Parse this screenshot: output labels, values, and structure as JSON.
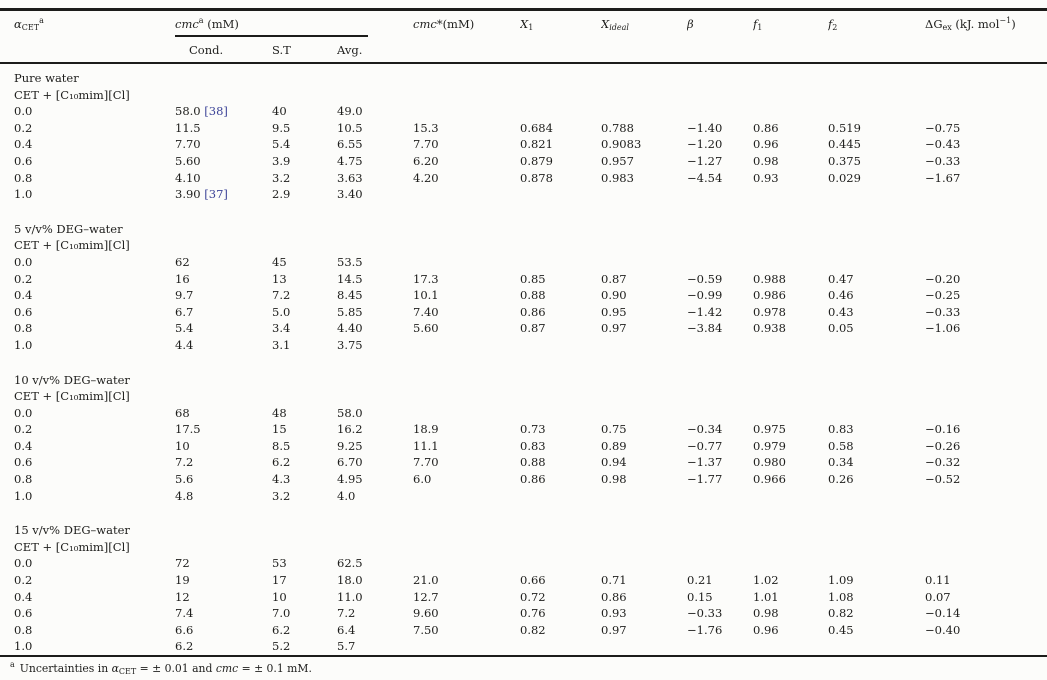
{
  "colors": {
    "citation_link": "#3d4498",
    "text": "#1e1e1c",
    "background": "#fcfcfa",
    "rule": "#1c1c1a"
  },
  "header": {
    "alpha": {
      "symbol": "α",
      "sub": "CET",
      "sup": "a"
    },
    "cmc_group": {
      "symbol": "cmc",
      "sup": "a",
      "unit": " (mM)"
    },
    "cmc_sub_columns": {
      "cond": "Cond.",
      "st": "S.T",
      "avg": "Avg."
    },
    "cmc_star": {
      "symbol": "cmc",
      "star": "*",
      "unit": "(mM)"
    },
    "x1": {
      "symbol": "X",
      "sub": "1"
    },
    "x_ideal": {
      "symbol": "X",
      "sub": "ideal"
    },
    "beta": {
      "symbol": "β"
    },
    "f1": {
      "symbol": "f",
      "sub": "1"
    },
    "f2": {
      "symbol": "f",
      "sub": "2"
    },
    "dg_ex": {
      "symbol": "ΔG",
      "sub": "ex",
      "unit_pre": " (kJ. mol",
      "sup": "−1",
      "unit_post": ")"
    }
  },
  "table": {
    "sections": [
      {
        "solvent": "Pure water",
        "system": "CET + [C₁₀mim][Cl]",
        "rows": [
          {
            "alpha": "0.0",
            "cond": "58.0",
            "ref": "[38]",
            "st": "40",
            "avg": "49.0",
            "cmcstar": "",
            "x1": "",
            "xideal": "",
            "beta": "",
            "f1": "",
            "f2": "",
            "dg": ""
          },
          {
            "alpha": "0.2",
            "cond": "11.5",
            "st": "9.5",
            "avg": "10.5",
            "cmcstar": "15.3",
            "x1": "0.684",
            "xideal": "0.788",
            "beta": "−1.40",
            "f1": "0.86",
            "f2": "0.519",
            "dg": "−0.75"
          },
          {
            "alpha": "0.4",
            "cond": "7.70",
            "st": "5.4",
            "avg": "6.55",
            "cmcstar": "7.70",
            "x1": "0.821",
            "xideal": "0.9083",
            "beta": "−1.20",
            "f1": "0.96",
            "f2": "0.445",
            "dg": "−0.43"
          },
          {
            "alpha": "0.6",
            "cond": "5.60",
            "st": "3.9",
            "avg": "4.75",
            "cmcstar": "6.20",
            "x1": "0.879",
            "xideal": "0.957",
            "beta": "−1.27",
            "f1": "0.98",
            "f2": "0.375",
            "dg": "−0.33"
          },
          {
            "alpha": "0.8",
            "cond": "4.10",
            "st": "3.2",
            "avg": "3.63",
            "cmcstar": "4.20",
            "x1": "0.878",
            "xideal": "0.983",
            "beta": "−4.54",
            "f1": "0.93",
            "f2": "0.029",
            "dg": "−1.67"
          },
          {
            "alpha": "1.0",
            "cond": "3.90",
            "ref": "[37]",
            "st": "2.9",
            "avg": "3.40",
            "cmcstar": "",
            "x1": "",
            "xideal": "",
            "beta": "",
            "f1": "",
            "f2": "",
            "dg": ""
          }
        ]
      },
      {
        "solvent": "5 v/v% DEG–water",
        "system": "CET + [C₁₀mim][Cl]",
        "rows": [
          {
            "alpha": "0.0",
            "cond": "62",
            "st": "45",
            "avg": "53.5",
            "cmcstar": "",
            "x1": "",
            "xideal": "",
            "beta": "",
            "f1": "",
            "f2": "",
            "dg": ""
          },
          {
            "alpha": "0.2",
            "cond": "16",
            "st": "13",
            "avg": "14.5",
            "cmcstar": "17.3",
            "x1": "0.85",
            "xideal": "0.87",
            "beta": "−0.59",
            "f1": "0.988",
            "f2": "0.47",
            "dg": "−0.20"
          },
          {
            "alpha": "0.4",
            "cond": "9.7",
            "st": "7.2",
            "avg": "8.45",
            "cmcstar": "10.1",
            "x1": "0.88",
            "xideal": "0.90",
            "beta": "−0.99",
            "f1": "0.986",
            "f2": "0.46",
            "dg": "−0.25"
          },
          {
            "alpha": "0.6",
            "cond": "6.7",
            "st": "5.0",
            "avg": "5.85",
            "cmcstar": "7.40",
            "x1": "0.86",
            "xideal": "0.95",
            "beta": "−1.42",
            "f1": "0.978",
            "f2": "0.43",
            "dg": "−0.33"
          },
          {
            "alpha": "0.8",
            "cond": "5.4",
            "st": "3.4",
            "avg": "4.40",
            "cmcstar": "5.60",
            "x1": "0.87",
            "xideal": "0.97",
            "beta": "−3.84",
            "f1": "0.938",
            "f2": "0.05",
            "dg": "−1.06"
          },
          {
            "alpha": "1.0",
            "cond": "4.4",
            "st": "3.1",
            "avg": "3.75",
            "cmcstar": "",
            "x1": "",
            "xideal": "",
            "beta": "",
            "f1": "",
            "f2": "",
            "dg": ""
          }
        ]
      },
      {
        "solvent": "10 v/v% DEG–water",
        "system": "CET + [C₁₀mim][Cl]",
        "rows": [
          {
            "alpha": "0.0",
            "cond": "68",
            "st": "48",
            "avg": "58.0",
            "cmcstar": "",
            "x1": "",
            "xideal": "",
            "beta": "",
            "f1": "",
            "f2": "",
            "dg": ""
          },
          {
            "alpha": "0.2",
            "cond": "17.5",
            "st": "15",
            "avg": "16.2",
            "cmcstar": "18.9",
            "x1": "0.73",
            "xideal": "0.75",
            "beta": "−0.34",
            "f1": "0.975",
            "f2": "0.83",
            "dg": "−0.16"
          },
          {
            "alpha": "0.4",
            "cond": "10",
            "st": "8.5",
            "avg": "9.25",
            "cmcstar": "11.1",
            "x1": "0.83",
            "xideal": "0.89",
            "beta": "−0.77",
            "f1": "0.979",
            "f2": "0.58",
            "dg": "−0.26"
          },
          {
            "alpha": "0.6",
            "cond": "7.2",
            "st": "6.2",
            "avg": "6.70",
            "cmcstar": "7.70",
            "x1": "0.88",
            "xideal": "0.94",
            "beta": "−1.37",
            "f1": "0.980",
            "f2": "0.34",
            "dg": "−0.32"
          },
          {
            "alpha": "0.8",
            "cond": "5.6",
            "st": "4.3",
            "avg": "4.95",
            "cmcstar": "6.0",
            "x1": "0.86",
            "xideal": "0.98",
            "beta": "−1.77",
            "f1": "0.966",
            "f2": "0.26",
            "dg": "−0.52"
          },
          {
            "alpha": "1.0",
            "cond": "4.8",
            "st": "3.2",
            "avg": "4.0",
            "cmcstar": "",
            "x1": "",
            "xideal": "",
            "beta": "",
            "f1": "",
            "f2": "",
            "dg": ""
          }
        ]
      },
      {
        "solvent": "15 v/v% DEG–water",
        "system": "CET + [C₁₀mim][Cl]",
        "rows": [
          {
            "alpha": "0.0",
            "cond": "72",
            "st": "53",
            "avg": "62.5",
            "cmcstar": "",
            "x1": "",
            "xideal": "",
            "beta": "",
            "f1": "",
            "f2": "",
            "dg": ""
          },
          {
            "alpha": "0.2",
            "cond": "19",
            "st": "17",
            "avg": "18.0",
            "cmcstar": "21.0",
            "x1": "0.66",
            "xideal": "0.71",
            "beta": "0.21",
            "f1": "1.02",
            "f2": "1.09",
            "dg": "0.11"
          },
          {
            "alpha": "0.4",
            "cond": "12",
            "st": "10",
            "avg": "11.0",
            "cmcstar": "12.7",
            "x1": "0.72",
            "xideal": "0.86",
            "beta": "0.15",
            "f1": "1.01",
            "f2": "1.08",
            "dg": "0.07"
          },
          {
            "alpha": "0.6",
            "cond": "7.4",
            "st": "7.0",
            "avg": "7.2",
            "cmcstar": "9.60",
            "x1": "0.76",
            "xideal": "0.93",
            "beta": "−0.33",
            "f1": "0.98",
            "f2": "0.82",
            "dg": "−0.14"
          },
          {
            "alpha": "0.8",
            "cond": "6.6",
            "st": "6.2",
            "avg": "6.4",
            "cmcstar": "7.50",
            "x1": "0.82",
            "xideal": "0.97",
            "beta": "−1.76",
            "f1": "0.96",
            "f2": "0.45",
            "dg": "−0.40"
          },
          {
            "alpha": "1.0",
            "cond": "6.2",
            "st": "5.2",
            "avg": "5.7",
            "cmcstar": "",
            "x1": "",
            "xideal": "",
            "beta": "",
            "f1": "",
            "f2": "",
            "dg": ""
          }
        ]
      }
    ]
  },
  "footnote": {
    "marker": "a",
    "text_1": "Uncertainties in ",
    "alpha_symbol": "α",
    "alpha_sub": "CET",
    "text_2": " = ± 0.01 and ",
    "cmc_symbol": "cmc",
    "text_3": " = ± 0.1 mM."
  }
}
